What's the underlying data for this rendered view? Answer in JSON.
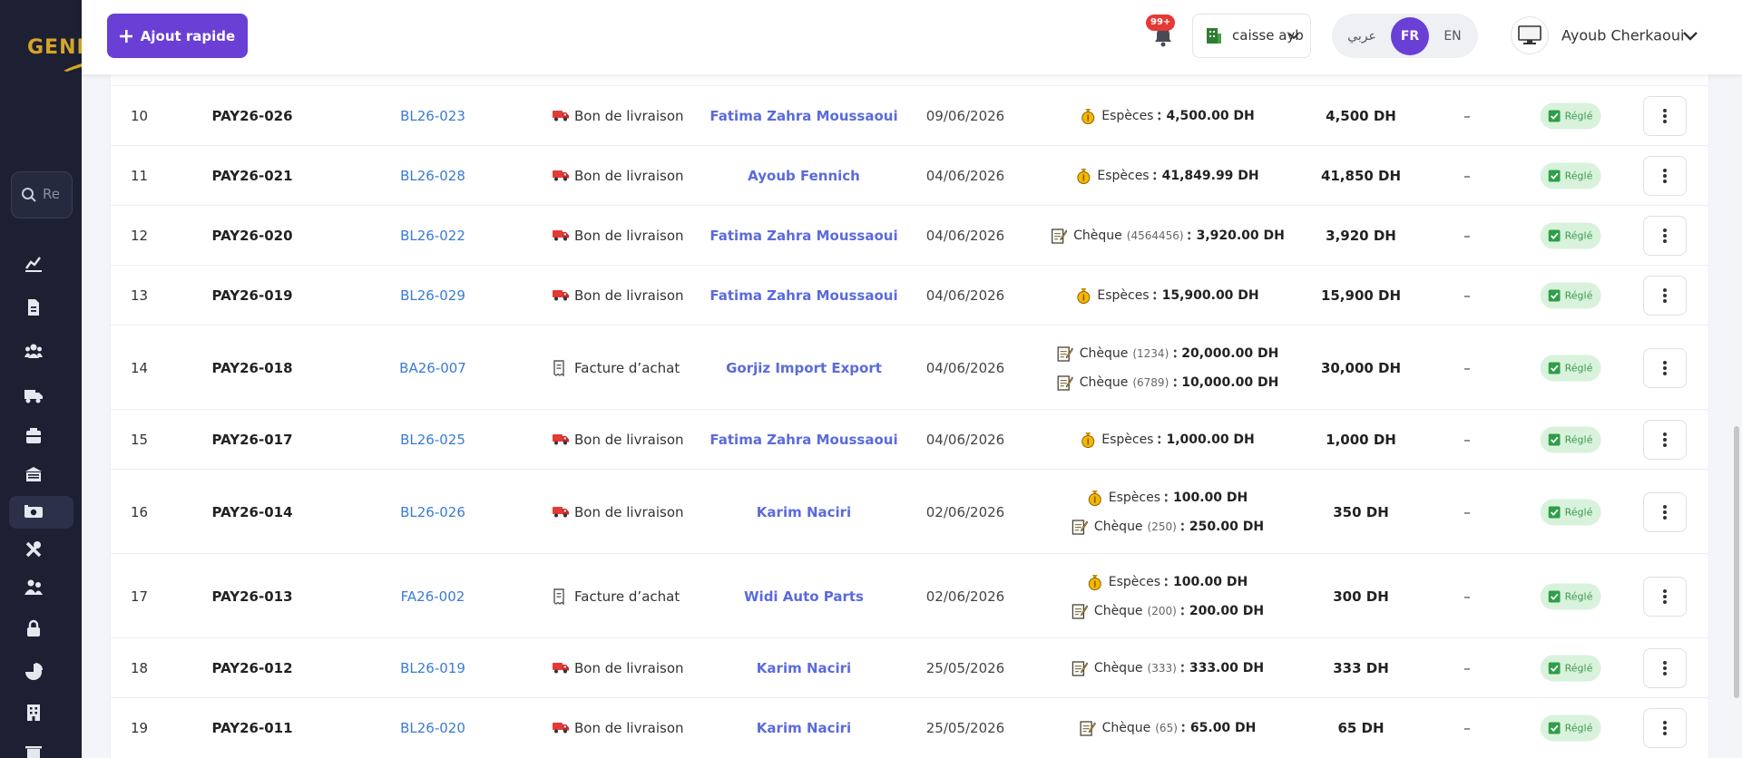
{
  "sidebar": {
    "logo": "GENIS",
    "search_placeholder": "Re"
  },
  "header": {
    "quick_add": "Ajout rapide",
    "notification_badge": "99+",
    "register": "caisse ayb",
    "languages": [
      "عربي",
      "FR",
      "EN"
    ],
    "active_language": "FR",
    "user_name": "Ayoub Cherkaoui"
  },
  "table": {
    "rows": [
      {
        "number": "10",
        "payment_ref": "PAY26-026",
        "document": "BL26-023",
        "document_type": "Bon de livraison",
        "supplier": "Fatima Zahra Moussaoui",
        "date": "09/06/2026",
        "payments": [
          {
            "method": "Espèces",
            "amount": "4,500.00 DH"
          }
        ],
        "total": "4,500 DH",
        "remaining": "–",
        "status": "Réglé"
      },
      {
        "number": "11",
        "payment_ref": "PAY26-021",
        "document": "BL26-028",
        "document_type": "Bon de livraison",
        "supplier": "Ayoub Fennich",
        "date": "04/06/2026",
        "payments": [
          {
            "method": "Espèces",
            "amount": "41,849.99 DH"
          }
        ],
        "total": "41,850 DH",
        "remaining": "–",
        "status": "Réglé"
      },
      {
        "number": "12",
        "payment_ref": "PAY26-020",
        "document": "BL26-022",
        "document_type": "Bon de livraison",
        "supplier": "Fatima Zahra Moussaoui",
        "date": "04/06/2026",
        "payments": [
          {
            "method": "Chèque",
            "cheque_number": "(4564456)",
            "amount": "3,920.00 DH"
          }
        ],
        "total": "3,920 DH",
        "remaining": "–",
        "status": "Réglé"
      },
      {
        "number": "13",
        "payment_ref": "PAY26-019",
        "document": "BL26-029",
        "document_type": "Bon de livraison",
        "supplier": "Fatima Zahra Moussaoui",
        "date": "04/06/2026",
        "payments": [
          {
            "method": "Espèces",
            "amount": "15,900.00 DH"
          }
        ],
        "total": "15,900 DH",
        "remaining": "–",
        "status": "Réglé"
      },
      {
        "number": "14",
        "payment_ref": "PAY26-018",
        "document": "BA26-007",
        "document_type": "Facture d’achat",
        "supplier": "Gorjiz Import Export",
        "date": "04/06/2026",
        "payments": [
          {
            "method": "Chèque",
            "cheque_number": "(1234)",
            "amount": "20,000.00 DH"
          },
          {
            "method": "Chèque",
            "cheque_number": "(6789)",
            "amount": "10,000.00 DH"
          }
        ],
        "total": "30,000 DH",
        "remaining": "–",
        "status": "Réglé"
      },
      {
        "number": "15",
        "payment_ref": "PAY26-017",
        "document": "BL26-025",
        "document_type": "Bon de livraison",
        "supplier": "Fatima Zahra Moussaoui",
        "date": "04/06/2026",
        "payments": [
          {
            "method": "Espèces",
            "amount": "1,000.00 DH"
          }
        ],
        "total": "1,000 DH",
        "remaining": "–",
        "status": "Réglé"
      },
      {
        "number": "16",
        "payment_ref": "PAY26-014",
        "document": "BL26-026",
        "document_type": "Bon de livraison",
        "supplier": "Karim Naciri",
        "date": "02/06/2026",
        "payments": [
          {
            "method": "Espèces",
            "amount": "100.00 DH"
          },
          {
            "method": "Chèque",
            "cheque_number": "(250)",
            "amount": "250.00 DH"
          }
        ],
        "total": "350 DH",
        "remaining": "–",
        "status": "Réglé"
      },
      {
        "number": "17",
        "payment_ref": "PAY26-013",
        "document": "FA26-002",
        "document_type": "Facture d’achat",
        "supplier": "Widi Auto Parts",
        "date": "02/06/2026",
        "payments": [
          {
            "method": "Espèces",
            "amount": "100.00 DH"
          },
          {
            "method": "Chèque",
            "cheque_number": "(200)",
            "amount": "200.00 DH"
          }
        ],
        "total": "300 DH",
        "remaining": "–",
        "status": "Réglé"
      },
      {
        "number": "18",
        "payment_ref": "PAY26-012",
        "document": "BL26-019",
        "document_type": "Bon de livraison",
        "supplier": "Karim Naciri",
        "date": "25/05/2026",
        "payments": [
          {
            "method": "Chèque",
            "cheque_number": "(333)",
            "amount": "333.00 DH"
          }
        ],
        "total": "333 DH",
        "remaining": "–",
        "status": "Réglé"
      },
      {
        "number": "19",
        "payment_ref": "PAY26-011",
        "document": "BL26-020",
        "document_type": "Bon de livraison",
        "supplier": "Karim Naciri",
        "date": "25/05/2026",
        "payments": [
          {
            "method": "Chèque",
            "cheque_number": "(65)",
            "amount": "65.00 DH"
          }
        ],
        "total": "65 DH",
        "remaining": "–",
        "status": "Réglé"
      }
    ]
  }
}
